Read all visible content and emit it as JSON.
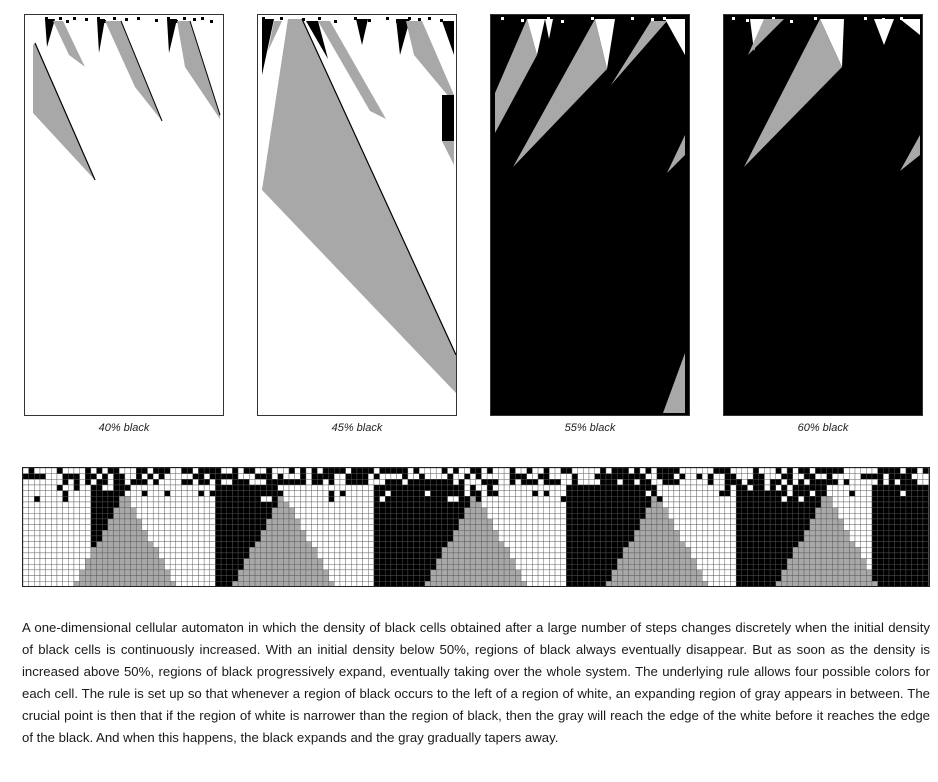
{
  "panels": [
    {
      "label": "40% black",
      "background": "#ffffff"
    },
    {
      "label": "45% black",
      "background": "#ffffff"
    },
    {
      "label": "55% black",
      "background": "#000000"
    },
    {
      "label": "60% black",
      "background": "#000000"
    }
  ],
  "colors": {
    "white": "#ffffff",
    "black": "#000000",
    "gray": "#a8a8a8",
    "grid": "#555555"
  },
  "caption": "A one-dimensional cellular automaton in which the density of black cells obtained after a large number of steps changes discretely when the initial density of black cells is continuously increased. With an initial density below 50%, regions of black always eventually disappear. But as soon as the density is increased above 50%, regions of black progressively expand, eventually taking over the whole system. The underlying rule allows four possible colors for each cell. The rule is set up so that whenever a region of black occurs to the left of a region of white, an expanding region of gray appears in between. The crucial point is then that if the region of white is narrower than the region of black, then the gray will reach the edge of the white before it reaches the edge of the black. And when this happens, the black expands and the gray gradually tapers away."
}
